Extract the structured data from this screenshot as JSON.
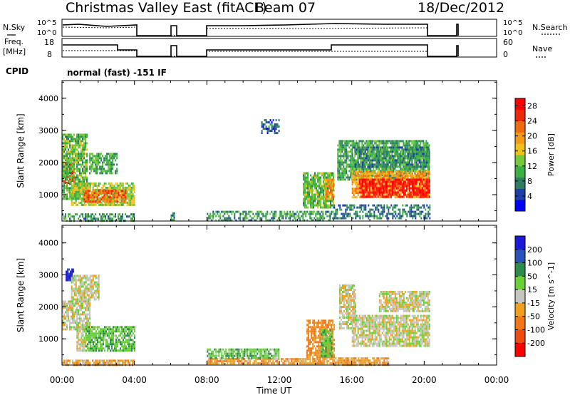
{
  "header": {
    "title": "Christmas Valley East (fitACF)",
    "beam": "Beam 07",
    "date": "18/Dec/2012"
  },
  "panels": {
    "nsky": {
      "label_left": "N.Sky",
      "ticks_left": [
        "10^5",
        "10^0"
      ],
      "ticks_right": [
        "10^5",
        "10^0"
      ],
      "label_right": "N.Search"
    },
    "freq": {
      "label_left_1": "Freq.",
      "label_left_2": "[MHz]",
      "ticks_left": [
        "18",
        "8"
      ],
      "ticks_right": [
        "60",
        "0"
      ],
      "label_right": "Nave"
    },
    "cpid": {
      "label": "CPID",
      "text": "normal (fast) -151 IF"
    }
  },
  "colors": {
    "power_scale": [
      "#0000ff",
      "#1e3fa8",
      "#2e7d62",
      "#3cb043",
      "#77c83a",
      "#f0c020",
      "#f39a18",
      "#f06a10",
      "#ec2a0a",
      "#ff0000"
    ],
    "velocity_scale": [
      "#1a1ad8",
      "#2b52b8",
      "#2e8c4a",
      "#6ad03a",
      "#c6c6c0",
      "#f0a020",
      "#f07818",
      "#ee4a12",
      "#ff0000"
    ]
  },
  "chart_data": [
    {
      "type": "heatmap",
      "title": "",
      "xlabel": "Time UT",
      "ylabel": "Slant Range [km]",
      "x_ticks": [
        "00:00",
        "04:00",
        "08:00",
        "12:00",
        "16:00",
        "20:00",
        "00:00"
      ],
      "xlim_hours": [
        0,
        24
      ],
      "y_ticks": [
        1000,
        2000,
        3000,
        4000
      ],
      "ylim": [
        180,
        4550
      ],
      "colorbar": {
        "label": "Power [dB]",
        "ticks": [
          4,
          8,
          12,
          16,
          20,
          24,
          28
        ],
        "range": [
          0,
          30
        ]
      },
      "regions": [
        {
          "t0": 0.0,
          "t1": 0.7,
          "r0": 1350,
          "r1": 2000,
          "value": 26
        },
        {
          "t0": 0.0,
          "t1": 1.4,
          "r0": 900,
          "r1": 2900,
          "value": 12
        },
        {
          "t0": 0.5,
          "t1": 4.0,
          "r0": 650,
          "r1": 1380,
          "value": 14
        },
        {
          "t0": 1.2,
          "t1": 3.5,
          "r0": 780,
          "r1": 1150,
          "value": 22
        },
        {
          "t0": 1.5,
          "t1": 3.0,
          "r0": 1700,
          "r1": 2300,
          "value": 10
        },
        {
          "t0": 0.0,
          "t1": 4.0,
          "r0": 200,
          "r1": 420,
          "value": 9
        },
        {
          "t0": 6.0,
          "t1": 6.2,
          "r0": 200,
          "r1": 450,
          "value": 8
        },
        {
          "t0": 8.0,
          "t1": 15.0,
          "r0": 200,
          "r1": 500,
          "value": 9
        },
        {
          "t0": 13.3,
          "t1": 15.0,
          "r0": 600,
          "r1": 1700,
          "value": 12
        },
        {
          "t0": 14.5,
          "t1": 15.0,
          "r0": 900,
          "r1": 1500,
          "value": 20
        },
        {
          "t0": 11.0,
          "t1": 12.0,
          "r0": 2950,
          "r1": 3350,
          "value": 6
        },
        {
          "t0": 15.0,
          "t1": 20.3,
          "r0": 300,
          "r1": 700,
          "value": 7
        },
        {
          "t0": 15.2,
          "t1": 20.3,
          "r0": 1500,
          "r1": 2700,
          "value": 10
        },
        {
          "t0": 16.0,
          "t1": 20.3,
          "r0": 1850,
          "r1": 2500,
          "value": 8
        },
        {
          "t0": 16.0,
          "t1": 20.3,
          "r0": 900,
          "r1": 1750,
          "value": 19
        },
        {
          "t0": 16.4,
          "t1": 20.3,
          "r0": 950,
          "r1": 1500,
          "value": 27
        }
      ]
    },
    {
      "type": "heatmap",
      "title": "",
      "xlabel": "Time UT",
      "ylabel": "Slant Range [km]",
      "x_ticks": [
        "00:00",
        "04:00",
        "08:00",
        "12:00",
        "16:00",
        "20:00",
        "00:00"
      ],
      "xlim_hours": [
        0,
        24
      ],
      "y_ticks": [
        1000,
        2000,
        3000,
        4000
      ],
      "ylim": [
        180,
        4550
      ],
      "colorbar": {
        "label": "Velocity [m s^-1]",
        "ticks": [
          200,
          100,
          50,
          15,
          -15,
          -50,
          -100,
          -200
        ],
        "range": [
          -250,
          250
        ]
      },
      "regions": [
        {
          "t0": 0.0,
          "t1": 1.5,
          "r0": 1300,
          "r1": 2200,
          "value": 0
        },
        {
          "t0": 0.2,
          "t1": 0.6,
          "r0": 2800,
          "r1": 3200,
          "value": 220
        },
        {
          "t0": 0.5,
          "t1": 2.0,
          "r0": 2200,
          "r1": 3000,
          "value": 0
        },
        {
          "t0": 0.8,
          "t1": 1.3,
          "r0": 600,
          "r1": 1400,
          "value": 0
        },
        {
          "t0": 1.3,
          "t1": 4.0,
          "r0": 600,
          "r1": 1400,
          "value": 40
        },
        {
          "t0": 0.0,
          "t1": 4.0,
          "r0": 200,
          "r1": 350,
          "value": -30
        },
        {
          "t0": 8.0,
          "t1": 15.0,
          "r0": 200,
          "r1": 400,
          "value": -40
        },
        {
          "t0": 8.0,
          "t1": 12.0,
          "r0": 400,
          "r1": 700,
          "value": 40
        },
        {
          "t0": 13.5,
          "t1": 15.0,
          "r0": 450,
          "r1": 1600,
          "value": -60
        },
        {
          "t0": 14.3,
          "t1": 14.9,
          "r0": 450,
          "r1": 1300,
          "value": 40
        },
        {
          "t0": 15.0,
          "t1": 18.0,
          "r0": 200,
          "r1": 420,
          "value": -40
        },
        {
          "t0": 15.3,
          "t1": 16.2,
          "r0": 1300,
          "r1": 2700,
          "value": 0
        },
        {
          "t0": 16.0,
          "t1": 20.3,
          "r0": 800,
          "r1": 1750,
          "value": 0
        },
        {
          "t0": 17.5,
          "t1": 20.3,
          "r0": 1850,
          "r1": 2500,
          "value": 0
        }
      ]
    }
  ]
}
